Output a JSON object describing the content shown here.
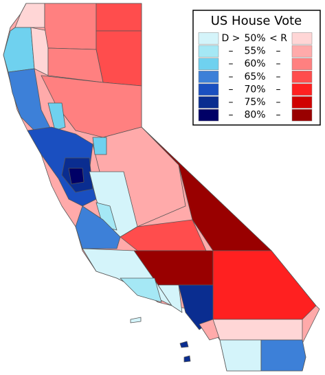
{
  "legend": {
    "title": "US House Vote",
    "rows": [
      {
        "left": "D >",
        "label": "50%",
        "right": "< R",
        "d_color": "#d4f4fa",
        "r_color": "#ffd6d6"
      },
      {
        "left": "–",
        "label": "55%",
        "right": "–",
        "d_color": "#a5e8f5",
        "r_color": "#ffaaaa"
      },
      {
        "left": "–",
        "label": "60%",
        "right": "–",
        "d_color": "#6fd1ef",
        "r_color": "#ff8080"
      },
      {
        "left": "–",
        "label": "65%",
        "right": "–",
        "d_color": "#3d80d8",
        "r_color": "#ff4d4d"
      },
      {
        "left": "–",
        "label": "70%",
        "right": "–",
        "d_color": "#1a4fc0",
        "r_color": "#ff2020"
      },
      {
        "left": "–",
        "label": "75%",
        "right": "–",
        "d_color": "#0a2d90",
        "r_color": "#d00000"
      },
      {
        "left": "–",
        "label": "80%",
        "right": "–",
        "d_color": "#000066",
        "r_color": "#990000"
      }
    ]
  }
}
